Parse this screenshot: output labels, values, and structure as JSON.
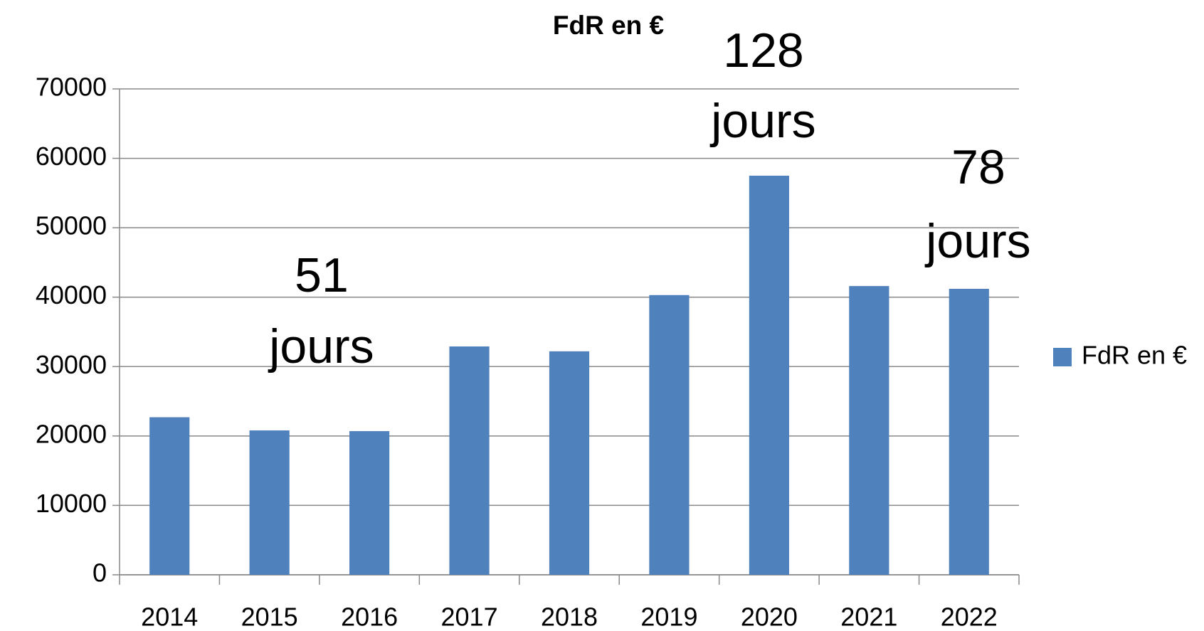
{
  "chart_data": {
    "type": "bar",
    "title": "FdR en €",
    "categories": [
      "2014",
      "2015",
      "2016",
      "2017",
      "2018",
      "2019",
      "2020",
      "2021",
      "2022"
    ],
    "series": [
      {
        "name": "FdR en €",
        "color": "#4f81bd",
        "values": [
          22700,
          20800,
          20700,
          32900,
          32200,
          40300,
          57500,
          41600,
          41200
        ]
      }
    ],
    "ylim": [
      0,
      70000
    ],
    "yticks": [
      0,
      10000,
      20000,
      30000,
      40000,
      50000,
      60000,
      70000
    ],
    "grid": true,
    "legend": "right",
    "annotations": [
      [
        "51",
        "jours"
      ],
      [
        "128",
        "jours"
      ],
      [
        "78",
        "jours"
      ]
    ]
  }
}
